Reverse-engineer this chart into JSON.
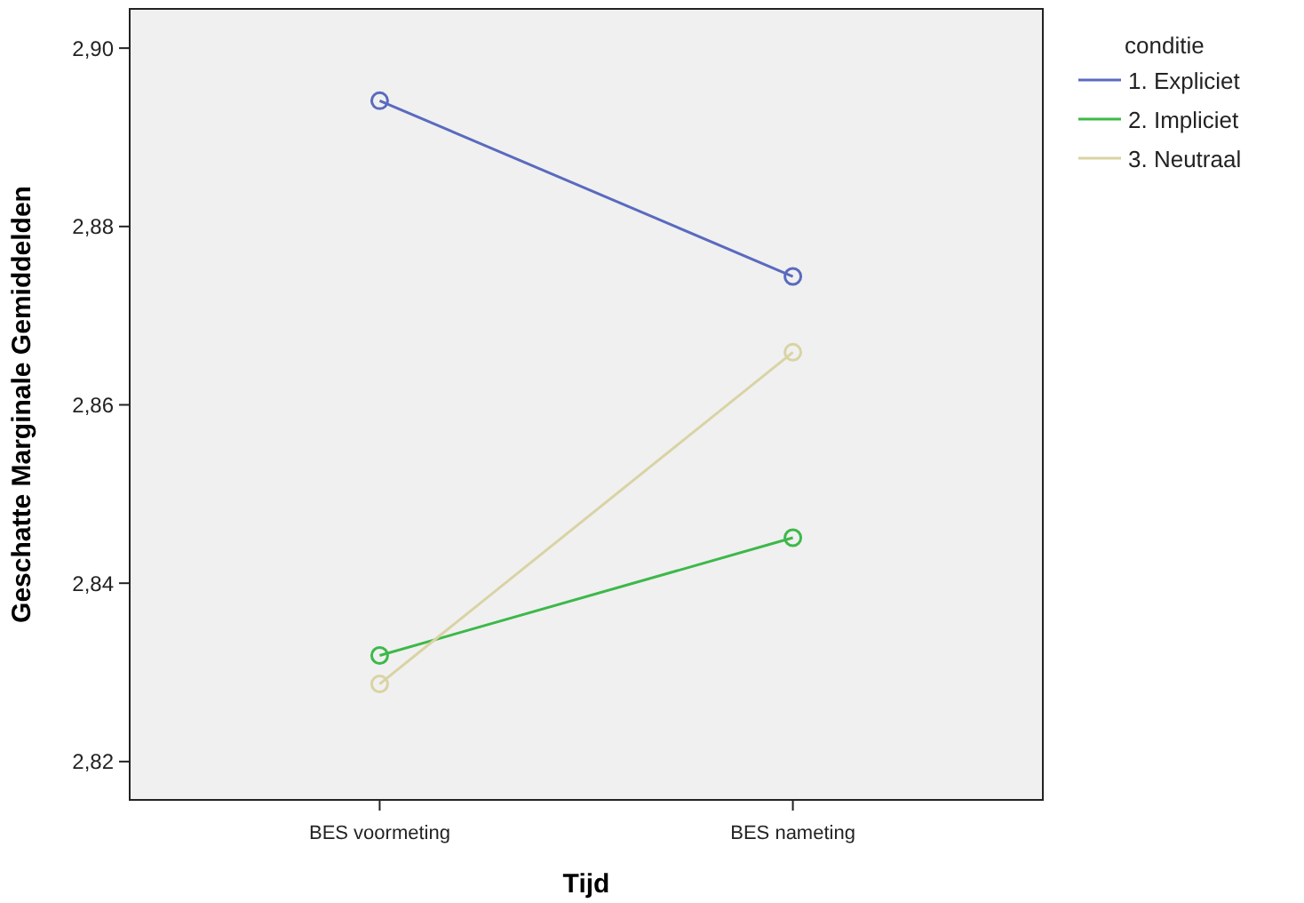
{
  "chart_data": {
    "type": "line",
    "xlabel": "Tijd",
    "ylabel": "Geschatte Marginale Gemiddelden",
    "legend_title": "conditie",
    "categories": [
      "BES voormeting",
      "BES nameting"
    ],
    "series": [
      {
        "name": "1. Expliciet",
        "color": "#5a6abf",
        "values": [
          2.8941,
          2.8744
        ]
      },
      {
        "name": "2. Impliciet",
        "color": "#3db84a",
        "values": [
          2.8319,
          2.8451
        ]
      },
      {
        "name": "3. Neutraal",
        "color": "#d9d3a4",
        "values": [
          2.8287,
          2.8659
        ]
      }
    ],
    "ylim": [
      2.8157,
      2.9044
    ],
    "yticks": [
      {
        "value": 2.82,
        "label": "2,82"
      },
      {
        "value": 2.84,
        "label": "2,84"
      },
      {
        "value": 2.86,
        "label": "2,86"
      },
      {
        "value": 2.88,
        "label": "2,88"
      },
      {
        "value": 2.9,
        "label": "2,90"
      }
    ],
    "grid": false,
    "legend": "top right",
    "marker": "circle",
    "line_style": "solid"
  }
}
